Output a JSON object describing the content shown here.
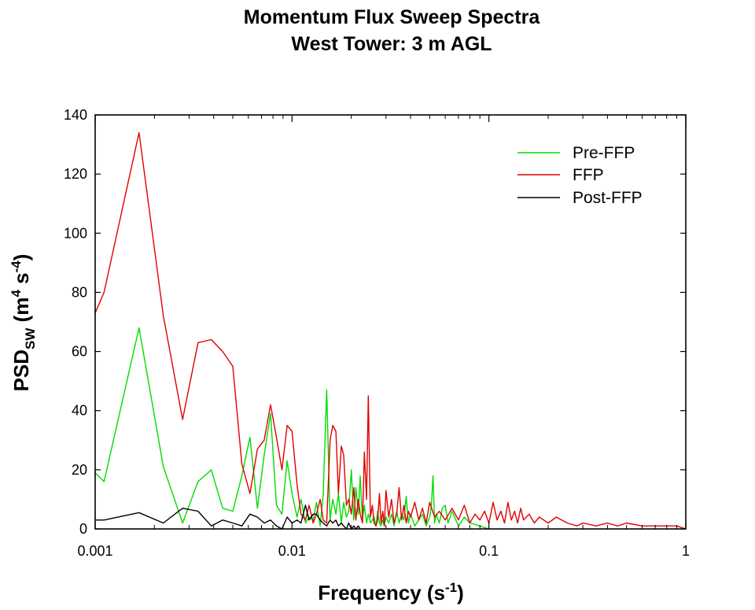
{
  "chart_data": {
    "type": "line",
    "title": "Momentum Flux Sweep Spectra",
    "subtitle": "West Tower: 3 m AGL",
    "xlabel": {
      "main": "Frequency (s",
      "sup": "-1",
      "end": ")"
    },
    "ylabel": {
      "main": "PSD",
      "sub": "SW",
      "mid": " (m",
      "sup1": "4",
      "sp": " s",
      "sup2": "-4",
      "end": ")"
    },
    "xscale": "log",
    "xlim": [
      0.001,
      1
    ],
    "ylim": [
      0,
      140
    ],
    "xticks": [
      0.001,
      0.01,
      0.1,
      1
    ],
    "xtick_labels": [
      "0.001",
      "0.01",
      "0.1",
      "1"
    ],
    "yticks": [
      0,
      20,
      40,
      60,
      80,
      100,
      120,
      140
    ],
    "ytick_labels": [
      "0",
      "20",
      "40",
      "60",
      "80",
      "100",
      "120",
      "140"
    ],
    "grid": false,
    "legend_position": "top-right",
    "series": [
      {
        "name": "Pre-FFP",
        "color": "#00dd00",
        "x": [
          0.001,
          0.00111,
          0.00167,
          0.00222,
          0.00278,
          0.00333,
          0.00389,
          0.00444,
          0.005,
          0.00556,
          0.00611,
          0.00667,
          0.00722,
          0.00778,
          0.00833,
          0.00889,
          0.00944,
          0.01,
          0.0106,
          0.0111,
          0.0117,
          0.0122,
          0.0128,
          0.0133,
          0.0139,
          0.0144,
          0.015,
          0.0156,
          0.0161,
          0.0167,
          0.0172,
          0.0178,
          0.0183,
          0.0189,
          0.0194,
          0.02,
          0.0206,
          0.0211,
          0.0217,
          0.0222,
          0.0228,
          0.0233,
          0.0239,
          0.0244,
          0.025,
          0.0256,
          0.0261,
          0.0267,
          0.0272,
          0.0278,
          0.0283,
          0.0289,
          0.0294,
          0.03,
          0.031,
          0.032,
          0.033,
          0.034,
          0.035,
          0.036,
          0.037,
          0.038,
          0.039,
          0.04,
          0.042,
          0.044,
          0.046,
          0.048,
          0.05,
          0.051,
          0.052,
          0.053,
          0.054,
          0.056,
          0.058,
          0.06,
          0.062,
          0.065,
          0.07,
          0.075,
          0.08,
          0.09,
          0.1
        ],
        "values": [
          19,
          16,
          68,
          21,
          2,
          16,
          20,
          7,
          6,
          18,
          31,
          7,
          25,
          39,
          8,
          5,
          23,
          12,
          4,
          10,
          2,
          4,
          3,
          9,
          1,
          12,
          47,
          3,
          10,
          5,
          12,
          2,
          9,
          4,
          6,
          20,
          3,
          14,
          5,
          18,
          3,
          8,
          2,
          5,
          2,
          3,
          4,
          1,
          6,
          2,
          1,
          3,
          1,
          4,
          2,
          5,
          1,
          6,
          2,
          5,
          3,
          11,
          2,
          5,
          1,
          3,
          5,
          1,
          4,
          8,
          18,
          2,
          5,
          2,
          7,
          8,
          2,
          6,
          1,
          4,
          2,
          1,
          0
        ]
      },
      {
        "name": "FFP",
        "color": "#e00000",
        "x": [
          0.001,
          0.00111,
          0.00167,
          0.00222,
          0.00278,
          0.00333,
          0.00389,
          0.00444,
          0.005,
          0.00556,
          0.00611,
          0.00667,
          0.00722,
          0.00778,
          0.00833,
          0.00889,
          0.00944,
          0.01,
          0.0106,
          0.0111,
          0.0117,
          0.0122,
          0.0128,
          0.0133,
          0.0139,
          0.0144,
          0.015,
          0.0156,
          0.0161,
          0.0167,
          0.0172,
          0.0178,
          0.0183,
          0.0189,
          0.0194,
          0.02,
          0.0206,
          0.0211,
          0.0217,
          0.0222,
          0.0228,
          0.0233,
          0.0239,
          0.0244,
          0.025,
          0.0256,
          0.0261,
          0.0267,
          0.0272,
          0.0278,
          0.0283,
          0.0289,
          0.0294,
          0.03,
          0.031,
          0.032,
          0.033,
          0.034,
          0.035,
          0.036,
          0.037,
          0.038,
          0.039,
          0.04,
          0.042,
          0.044,
          0.046,
          0.048,
          0.05,
          0.053,
          0.056,
          0.06,
          0.065,
          0.07,
          0.075,
          0.08,
          0.085,
          0.09,
          0.095,
          0.1,
          0.105,
          0.11,
          0.115,
          0.12,
          0.125,
          0.13,
          0.135,
          0.14,
          0.145,
          0.15,
          0.16,
          0.17,
          0.18,
          0.19,
          0.2,
          0.22,
          0.25,
          0.28,
          0.3,
          0.35,
          0.4,
          0.45,
          0.5,
          0.6,
          0.7,
          0.8,
          0.9,
          1.0
        ],
        "values": [
          73,
          80,
          134,
          72,
          37,
          63,
          64,
          60,
          55,
          22,
          12,
          27,
          30,
          42,
          31,
          20,
          35,
          33,
          15,
          5,
          3,
          8,
          2,
          5,
          10,
          3,
          2,
          30,
          35,
          33,
          12,
          28,
          25,
          8,
          10,
          5,
          14,
          3,
          10,
          5,
          2,
          26,
          10,
          45,
          4,
          8,
          2,
          1,
          3,
          12,
          2,
          6,
          1,
          13,
          4,
          10,
          2,
          5,
          14,
          3,
          8,
          2,
          6,
          4,
          9,
          3,
          7,
          2,
          9,
          4,
          6,
          3,
          7,
          3,
          8,
          2,
          5,
          3,
          6,
          2,
          9,
          3,
          6,
          2,
          9,
          3,
          6,
          2,
          7,
          3,
          5,
          2,
          4,
          3,
          2,
          4,
          2,
          1,
          2,
          1,
          2,
          1,
          2,
          1,
          1,
          1,
          1,
          0
        ]
      },
      {
        "name": "Post-FFP",
        "color": "#000000",
        "x": [
          0.001,
          0.00111,
          0.00167,
          0.00222,
          0.00278,
          0.00333,
          0.00389,
          0.00444,
          0.005,
          0.00556,
          0.00611,
          0.00667,
          0.00722,
          0.00778,
          0.00833,
          0.00889,
          0.00944,
          0.01,
          0.0106,
          0.0111,
          0.0117,
          0.0122,
          0.0128,
          0.0133,
          0.0139,
          0.0144,
          0.015,
          0.0156,
          0.0161,
          0.0167,
          0.0172,
          0.0178,
          0.0183,
          0.0189,
          0.0194,
          0.02,
          0.0206,
          0.0211,
          0.0217,
          0.0222,
          0.025,
          0.03,
          0.04,
          0.05,
          0.06
        ],
        "values": [
          3,
          3,
          5.5,
          2,
          7,
          6,
          1,
          3,
          2,
          1,
          5,
          4,
          2,
          3,
          1,
          0,
          4,
          2,
          3,
          2,
          8,
          3,
          5,
          5,
          3,
          2,
          1,
          3,
          2,
          3,
          1,
          2,
          1,
          0,
          2,
          0,
          1,
          0,
          1,
          0,
          0,
          0,
          0,
          0,
          0
        ]
      }
    ]
  }
}
